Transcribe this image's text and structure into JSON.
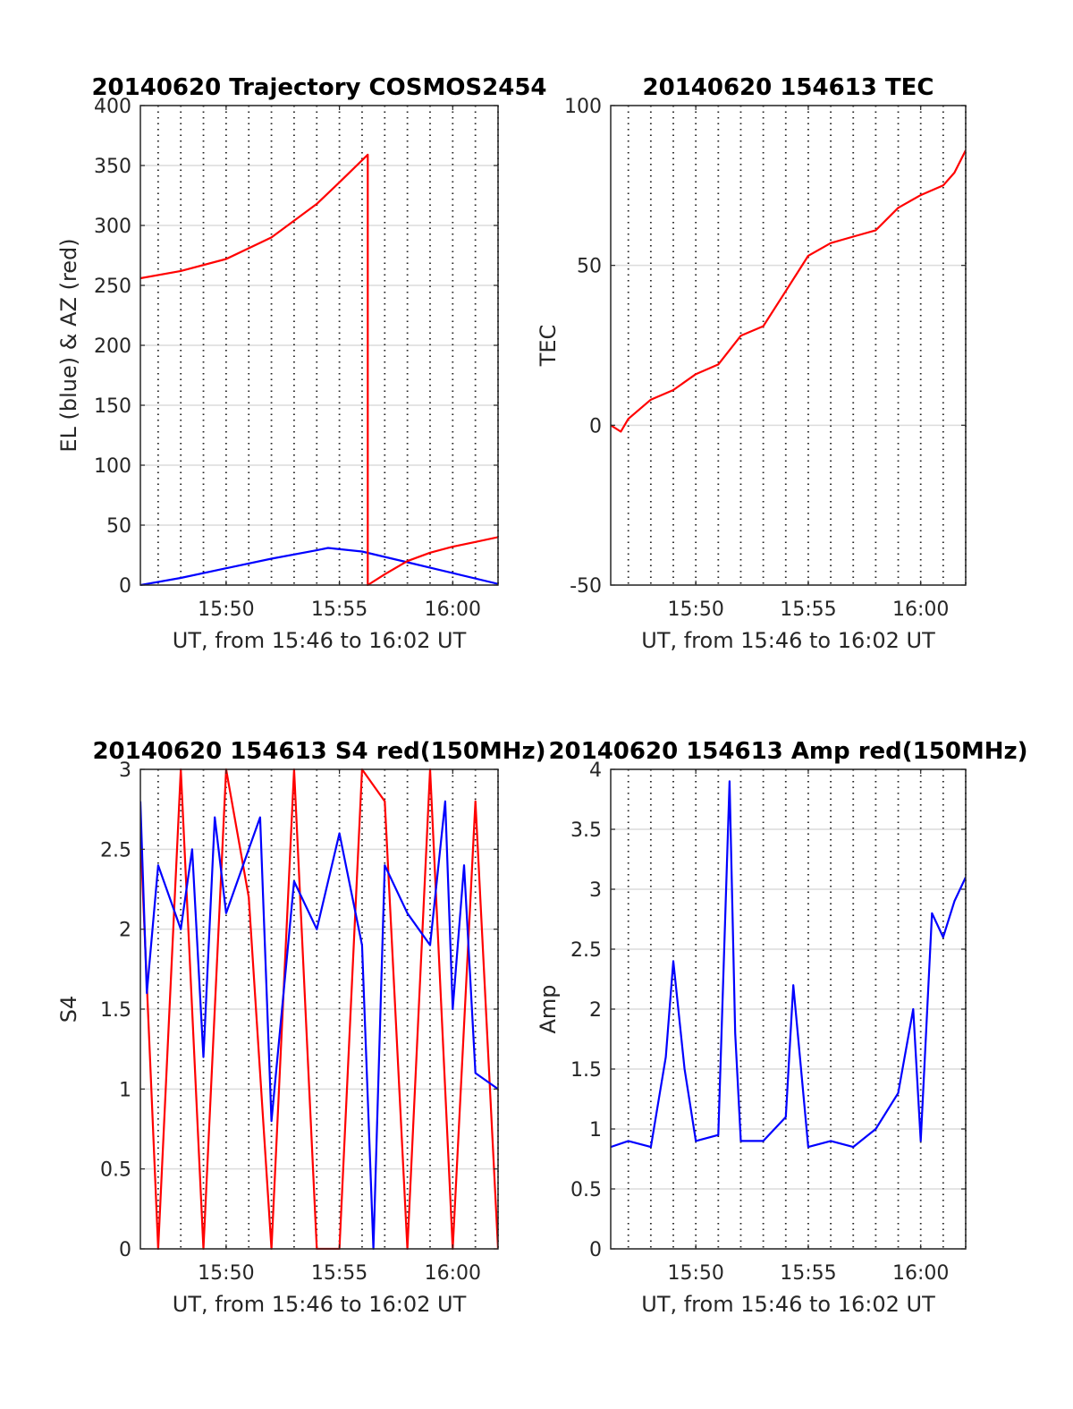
{
  "chart_data": [
    {
      "type": "line",
      "title": "20140620 Trajectory COSMOS2454",
      "xlabel": "UT, from 15:46 to 16:02 UT",
      "ylabel": "EL (blue) & AZ (red)",
      "xlim": [
        "15:46:13",
        "16:02:00"
      ],
      "ylim": [
        0,
        400
      ],
      "xticks": [
        "15:50",
        "15:55",
        "16:00"
      ],
      "yticks": [
        0,
        50,
        100,
        150,
        200,
        250,
        300,
        350,
        400
      ],
      "grid": true,
      "series": [
        {
          "name": "EL",
          "color": "#0000ff",
          "x": [
            "15:46:13",
            "15:48:00",
            "15:50:00",
            "15:52:00",
            "15:54:00",
            "15:54:30",
            "15:56:00",
            "15:58:00",
            "16:00:00",
            "16:02:00"
          ],
          "y": [
            0,
            6,
            14,
            22,
            29,
            31,
            28,
            19,
            10,
            1
          ]
        },
        {
          "name": "AZ",
          "color": "#ff0000",
          "x": [
            "15:46:13",
            "15:48:00",
            "15:50:00",
            "15:52:00",
            "15:54:00",
            "15:55:00",
            "15:56:15",
            "15:56:15",
            "15:57:00",
            "15:58:00",
            "15:59:00",
            "16:00:00",
            "16:01:00",
            "16:02:00"
          ],
          "y": [
            256,
            262,
            272,
            290,
            318,
            336,
            359,
            0,
            9,
            20,
            27,
            32,
            36,
            40
          ]
        }
      ]
    },
    {
      "type": "line",
      "title": "20140620 154613 TEC",
      "xlabel": "UT, from 15:46 to 16:02 UT",
      "ylabel": "TEC",
      "xlim": [
        "15:46:13",
        "16:02:00"
      ],
      "ylim": [
        -50,
        100
      ],
      "xticks": [
        "15:50",
        "15:55",
        "16:00"
      ],
      "yticks": [
        -50,
        0,
        50,
        100
      ],
      "grid": true,
      "series": [
        {
          "name": "TEC",
          "color": "#ff0000",
          "x": [
            "15:46:13",
            "15:46:40",
            "15:47:00",
            "15:48:00",
            "15:49:00",
            "15:50:00",
            "15:51:00",
            "15:52:00",
            "15:53:00",
            "15:54:00",
            "15:55:00",
            "15:56:00",
            "15:57:00",
            "15:58:00",
            "15:59:00",
            "16:00:00",
            "16:01:00",
            "16:01:30",
            "16:02:00"
          ],
          "y": [
            0,
            -2,
            2,
            8,
            11,
            16,
            19,
            28,
            31,
            42,
            53,
            57,
            59,
            61,
            68,
            72,
            75,
            79,
            86
          ]
        }
      ]
    },
    {
      "type": "line",
      "title": "20140620 154613 S4 red(150MHz)",
      "xlabel": "UT, from 15:46 to 16:02 UT",
      "ylabel": "S4",
      "xlim": [
        "15:46:13",
        "16:02:00"
      ],
      "ylim": [
        0,
        3
      ],
      "xticks": [
        "15:50",
        "15:55",
        "16:00"
      ],
      "yticks": [
        0,
        0.5,
        1,
        1.5,
        2,
        2.5,
        3
      ],
      "grid": true,
      "series": [
        {
          "name": "S4 red",
          "color": "#ff0000",
          "x": [
            "15:46:13",
            "15:47:00",
            "15:48:00",
            "15:49:00",
            "15:50:00",
            "15:51:00",
            "15:52:00",
            "15:53:00",
            "15:54:00",
            "15:55:00",
            "15:56:00",
            "15:57:00",
            "15:58:00",
            "15:59:00",
            "16:00:00",
            "16:01:00",
            "16:02:00"
          ],
          "y": [
            2.6,
            0,
            3,
            0,
            3,
            2.2,
            0,
            3,
            0,
            0,
            3,
            2.8,
            0,
            3,
            0,
            2.8,
            0
          ]
        },
        {
          "name": "S4 blue",
          "color": "#0000ff",
          "x": [
            "15:46:13",
            "15:46:30",
            "15:47:00",
            "15:48:00",
            "15:48:30",
            "15:49:00",
            "15:49:30",
            "15:50:00",
            "15:51:00",
            "15:51:30",
            "15:52:00",
            "15:53:00",
            "15:54:00",
            "15:55:00",
            "15:56:00",
            "15:56:30",
            "15:57:00",
            "15:58:00",
            "15:59:00",
            "15:59:40",
            "16:00:00",
            "16:00:30",
            "16:01:00",
            "16:02:00"
          ],
          "y": [
            2.8,
            1.6,
            2.4,
            2.0,
            2.5,
            1.2,
            2.7,
            2.1,
            2.5,
            2.7,
            0.8,
            2.3,
            2.0,
            2.6,
            1.9,
            0,
            2.4,
            2.1,
            1.9,
            2.8,
            1.5,
            2.4,
            1.1,
            1.0
          ]
        }
      ]
    },
    {
      "type": "line",
      "title": "20140620 154613 Amp red(150MHz)",
      "xlabel": "UT, from 15:46 to 16:02 UT",
      "ylabel": "Amp",
      "xlim": [
        "15:46:13",
        "16:02:00"
      ],
      "ylim": [
        0,
        4
      ],
      "xticks": [
        "15:50",
        "15:55",
        "16:00"
      ],
      "yticks": [
        0,
        0.5,
        1,
        1.5,
        2,
        2.5,
        3,
        3.5,
        4
      ],
      "grid": true,
      "series": [
        {
          "name": "Amp",
          "color": "#0000ff",
          "x": [
            "15:46:13",
            "15:47:00",
            "15:48:00",
            "15:48:40",
            "15:49:00",
            "15:49:30",
            "15:50:00",
            "15:51:00",
            "15:51:30",
            "15:51:45",
            "15:52:00",
            "15:53:00",
            "15:54:00",
            "15:54:20",
            "15:55:00",
            "15:56:00",
            "15:57:00",
            "15:58:00",
            "15:59:00",
            "15:59:40",
            "16:00:00",
            "16:00:30",
            "16:01:00",
            "16:01:30",
            "16:02:00"
          ],
          "y": [
            0.85,
            0.9,
            0.85,
            1.6,
            2.4,
            1.5,
            0.9,
            0.95,
            3.9,
            1.8,
            0.9,
            0.9,
            1.1,
            2.2,
            0.85,
            0.9,
            0.85,
            1.0,
            1.3,
            2.0,
            0.9,
            2.8,
            2.6,
            2.9,
            3.1
          ]
        }
      ]
    }
  ]
}
